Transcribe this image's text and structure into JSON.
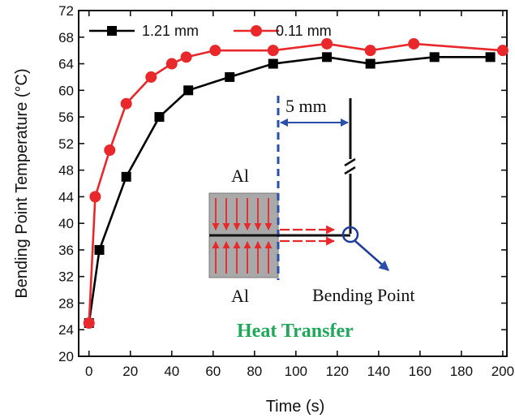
{
  "chart_data": {
    "type": "line",
    "xlabel": "Time (s)",
    "ylabel": "Bending Point Temperature (°C)",
    "xlim": [
      -5,
      202
    ],
    "ylim": [
      20,
      72
    ],
    "x_ticks": [
      0,
      20,
      40,
      60,
      80,
      100,
      120,
      140,
      160,
      180,
      200
    ],
    "y_ticks": [
      20,
      24,
      28,
      32,
      36,
      40,
      44,
      48,
      52,
      56,
      60,
      64,
      68,
      72
    ],
    "grid": false,
    "legend_position": "top-left",
    "series": [
      {
        "name": "1.21 mm",
        "color": "#000000",
        "marker": "square",
        "x": [
          0,
          5,
          18,
          34,
          48,
          68,
          89,
          115,
          136,
          167,
          194
        ],
        "y": [
          25,
          36,
          47,
          56,
          60,
          62,
          64,
          65,
          64,
          65,
          65
        ]
      },
      {
        "name": "0.11 mm",
        "color": "#e8282b",
        "marker": "circle",
        "x": [
          0,
          3,
          10,
          18,
          30,
          40,
          47,
          61,
          89,
          115,
          136,
          157,
          200
        ],
        "y": [
          25,
          44,
          51,
          58,
          62,
          64,
          65,
          66,
          66,
          67,
          66,
          67,
          66
        ]
      }
    ],
    "inset": {
      "top_label": "Al",
      "bottom_label": "Al",
      "distance_label": "5 mm",
      "point_label": "Bending Point",
      "caption": "Heat Transfer",
      "caption_color": "#1fa85a",
      "arrow_color": "#e8282b",
      "dash_color": "#2a4fa8"
    }
  }
}
